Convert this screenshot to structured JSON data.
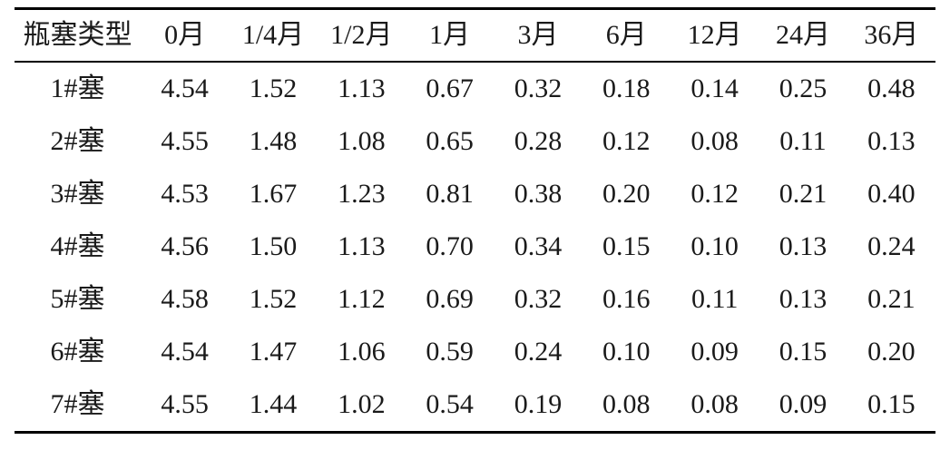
{
  "colors": {
    "background": "#ffffff",
    "text": "#1a1a1a",
    "rule": "#000000"
  },
  "table": {
    "columns": [
      "瓶塞类型",
      "0月",
      "1/4月",
      "1/2月",
      "1月",
      "3月",
      "6月",
      "12月",
      "24月",
      "36月"
    ],
    "rows": [
      {
        "label": "1#塞",
        "values": [
          "4.54",
          "1.52",
          "1.13",
          "0.67",
          "0.32",
          "0.18",
          "0.14",
          "0.25",
          "0.48"
        ]
      },
      {
        "label": "2#塞",
        "values": [
          "4.55",
          "1.48",
          "1.08",
          "0.65",
          "0.28",
          "0.12",
          "0.08",
          "0.11",
          "0.13"
        ]
      },
      {
        "label": "3#塞",
        "values": [
          "4.53",
          "1.67",
          "1.23",
          "0.81",
          "0.38",
          "0.20",
          "0.12",
          "0.21",
          "0.40"
        ]
      },
      {
        "label": "4#塞",
        "values": [
          "4.56",
          "1.50",
          "1.13",
          "0.70",
          "0.34",
          "0.15",
          "0.10",
          "0.13",
          "0.24"
        ]
      },
      {
        "label": "5#塞",
        "values": [
          "4.58",
          "1.52",
          "1.12",
          "0.69",
          "0.32",
          "0.16",
          "0.11",
          "0.13",
          "0.21"
        ]
      },
      {
        "label": "6#塞",
        "values": [
          "4.54",
          "1.47",
          "1.06",
          "0.59",
          "0.24",
          "0.10",
          "0.09",
          "0.15",
          "0.20"
        ]
      },
      {
        "label": "7#塞",
        "values": [
          "4.55",
          "1.44",
          "1.02",
          "0.54",
          "0.19",
          "0.08",
          "0.08",
          "0.09",
          "0.15"
        ]
      }
    ]
  },
  "chart_data": {
    "type": "table",
    "title": "",
    "row_header_label": "瓶塞类型",
    "categories": [
      "0月",
      "1/4月",
      "1/2月",
      "1月",
      "3月",
      "6月",
      "12月",
      "24月",
      "36月"
    ],
    "series": [
      {
        "name": "1#塞",
        "values": [
          4.54,
          1.52,
          1.13,
          0.67,
          0.32,
          0.18,
          0.14,
          0.25,
          0.48
        ]
      },
      {
        "name": "2#塞",
        "values": [
          4.55,
          1.48,
          1.08,
          0.65,
          0.28,
          0.12,
          0.08,
          0.11,
          0.13
        ]
      },
      {
        "name": "3#塞",
        "values": [
          4.53,
          1.67,
          1.23,
          0.81,
          0.38,
          0.2,
          0.12,
          0.21,
          0.4
        ]
      },
      {
        "name": "4#塞",
        "values": [
          4.56,
          1.5,
          1.13,
          0.7,
          0.34,
          0.15,
          0.1,
          0.13,
          0.24
        ]
      },
      {
        "name": "5#塞",
        "values": [
          4.58,
          1.52,
          1.12,
          0.69,
          0.32,
          0.16,
          0.11,
          0.13,
          0.21
        ]
      },
      {
        "name": "6#塞",
        "values": [
          4.54,
          1.47,
          1.06,
          0.59,
          0.24,
          0.1,
          0.09,
          0.15,
          0.2
        ]
      },
      {
        "name": "7#塞",
        "values": [
          4.55,
          1.44,
          1.02,
          0.54,
          0.19,
          0.08,
          0.08,
          0.09,
          0.15
        ]
      }
    ],
    "grid": "booktabs-rules-only",
    "legend_position": "none"
  }
}
